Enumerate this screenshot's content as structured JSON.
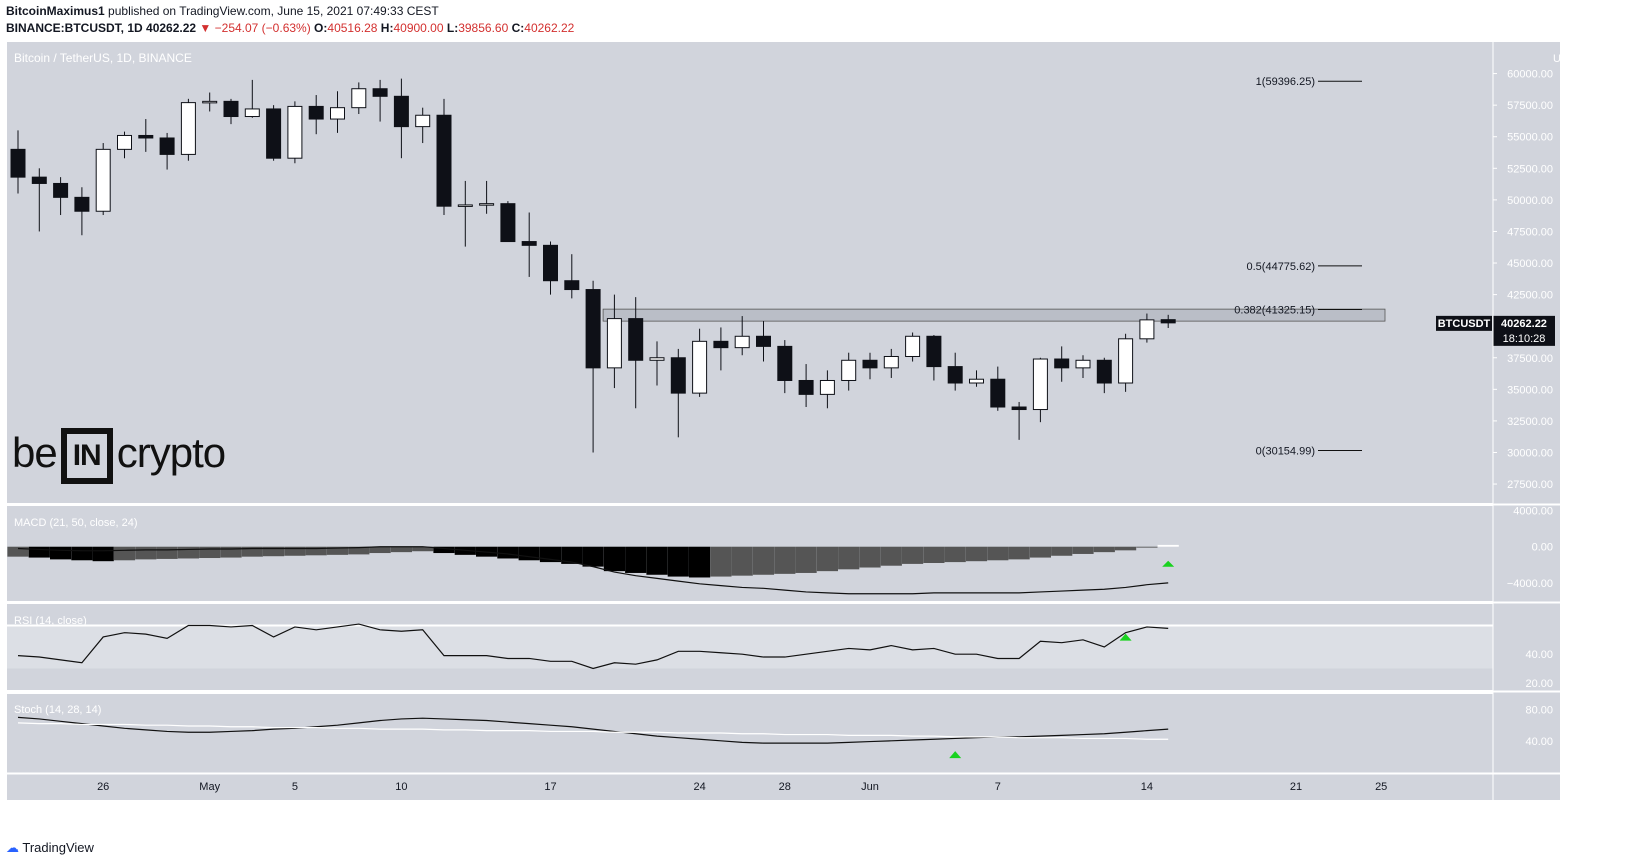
{
  "header": {
    "author": "BitcoinMaximus1",
    "published_text": "published on TradingView.com, June 15, 2021 07:49:33 CEST",
    "symbol": "BINANCE:BTCUSDT, 1D",
    "last": "40262.22",
    "change": "▼ −254.07 (−0.63%)",
    "open": "40516.28",
    "high": "40900.00",
    "low": "39856.60",
    "close": "40262.22"
  },
  "legend": "Bitcoin / TetherUS, 1D, BINANCE",
  "watermark": {
    "left": "be",
    "middle": "IN",
    "right": "crypto"
  },
  "price_axis": {
    "unit_label": "USDT",
    "ticks": [
      "60000.00",
      "57500.00",
      "55000.00",
      "52500.00",
      "50000.00",
      "47500.00",
      "45000.00",
      "42500.00",
      "37500.00",
      "35000.00",
      "32500.00",
      "30000.00",
      "27500.00"
    ],
    "symbol_tag": "BTCUSDT",
    "price_tag": "40262.22",
    "countdown": "18:10:28"
  },
  "fib_levels": [
    {
      "label": "1(59396.25)",
      "value": 59396.25
    },
    {
      "label": "0.5(44775.62)",
      "value": 44775.62
    },
    {
      "label": "0.382(41325.15)",
      "value": 41325.15
    },
    {
      "label": "0(30154.99)",
      "value": 30154.99
    }
  ],
  "resistance_zone": [
    40400,
    41350
  ],
  "x_axis_labels": [
    "26",
    "May",
    "5",
    "10",
    "17",
    "24",
    "28",
    "Jun",
    "7",
    "14",
    "21",
    "25"
  ],
  "panels": {
    "macd": {
      "title": "MACD (21, 50, close, 24)",
      "ticks": [
        "4000.00",
        "0.00",
        "−4000.00"
      ]
    },
    "rsi": {
      "title": "RSI (14, close)",
      "ticks": [
        "40.00",
        "20.00"
      ]
    },
    "stoch": {
      "title": "Stoch (14, 28, 14)",
      "ticks": [
        "80.00",
        "40.00"
      ]
    }
  },
  "footer": {
    "brand": "TradingView"
  },
  "colors": {
    "chart_bg": "#d1d4dc",
    "bear": "#0e1017",
    "bull": "#ffffff",
    "signal": "#19d21f"
  },
  "chart_data": [
    {
      "type": "candlestick",
      "title": "Bitcoin / TetherUS, 1D, BINANCE",
      "ylabel": "USDT",
      "ylim": [
        26000,
        62500
      ],
      "x": [
        "Apr 22",
        "Apr 23",
        "Apr 24",
        "Apr 25",
        "Apr 26",
        "Apr 27",
        "Apr 28",
        "Apr 29",
        "Apr 30",
        "May 1",
        "May 2",
        "May 3",
        "May 4",
        "May 5",
        "May 6",
        "May 7",
        "May 8",
        "May 9",
        "May 10",
        "May 11",
        "May 12",
        "May 13",
        "May 14",
        "May 15",
        "May 16",
        "May 17",
        "May 18",
        "May 19",
        "May 20",
        "May 21",
        "May 22",
        "May 23",
        "May 24",
        "May 25",
        "May 26",
        "May 27",
        "May 28",
        "May 29",
        "May 30",
        "May 31",
        "Jun 1",
        "Jun 2",
        "Jun 3",
        "Jun 4",
        "Jun 5",
        "Jun 6",
        "Jun 7",
        "Jun 8",
        "Jun 9",
        "Jun 10",
        "Jun 11",
        "Jun 12",
        "Jun 13",
        "Jun 14",
        "Jun 15"
      ],
      "ohlc": [
        [
          54000,
          55500,
          50500,
          51800
        ],
        [
          51800,
          52500,
          47500,
          51300
        ],
        [
          51300,
          51800,
          48800,
          50200
        ],
        [
          50200,
          51000,
          47200,
          49100
        ],
        [
          49100,
          54500,
          48800,
          54000
        ],
        [
          54000,
          55400,
          53300,
          55100
        ],
        [
          55100,
          56400,
          53800,
          54900
        ],
        [
          54900,
          55300,
          52400,
          53600
        ],
        [
          53600,
          58000,
          53100,
          57700
        ],
        [
          57700,
          58500,
          57000,
          57800
        ],
        [
          57800,
          58000,
          56000,
          56600
        ],
        [
          56600,
          59500,
          56500,
          57200
        ],
        [
          57200,
          57500,
          53100,
          53300
        ],
        [
          53300,
          57800,
          52900,
          57400
        ],
        [
          57400,
          58300,
          55200,
          56400
        ],
        [
          56400,
          58600,
          55300,
          57300
        ],
        [
          57300,
          59300,
          56800,
          58800
        ],
        [
          58800,
          59500,
          56200,
          58200
        ],
        [
          58200,
          59600,
          53300,
          55800
        ],
        [
          55800,
          57300,
          54500,
          56700
        ],
        [
          56700,
          58000,
          48800,
          49500
        ],
        [
          49500,
          51500,
          46300,
          49600
        ],
        [
          49600,
          51500,
          48900,
          49700
        ],
        [
          49700,
          49900,
          47000,
          46700
        ],
        [
          46700,
          49000,
          43900,
          46400
        ],
        [
          46400,
          46700,
          42500,
          43600
        ],
        [
          43600,
          45700,
          42200,
          42900
        ],
        [
          42900,
          43600,
          30000,
          36700
        ],
        [
          36700,
          42500,
          35100,
          40600
        ],
        [
          40600,
          42300,
          33500,
          37300
        ],
        [
          37300,
          38800,
          35300,
          37500
        ],
        [
          37500,
          38200,
          31200,
          34700
        ],
        [
          34700,
          39800,
          34400,
          38800
        ],
        [
          38800,
          39900,
          36500,
          38300
        ],
        [
          38300,
          40800,
          37700,
          39200
        ],
        [
          39200,
          40400,
          37200,
          38400
        ],
        [
          38400,
          38900,
          34700,
          35700
        ],
        [
          35700,
          37000,
          33600,
          34600
        ],
        [
          34600,
          36500,
          33500,
          35700
        ],
        [
          35700,
          37900,
          34900,
          37300
        ],
        [
          37300,
          37900,
          35800,
          36700
        ],
        [
          36700,
          38200,
          35900,
          37600
        ],
        [
          37600,
          39500,
          37200,
          39200
        ],
        [
          39200,
          39300,
          35700,
          36800
        ],
        [
          36800,
          37900,
          34900,
          35500
        ],
        [
          35500,
          36500,
          35200,
          35800
        ],
        [
          35800,
          36800,
          33300,
          33600
        ],
        [
          33600,
          34000,
          31000,
          33400
        ],
        [
          33400,
          37500,
          32400,
          37400
        ],
        [
          37400,
          38400,
          35600,
          36700
        ],
        [
          36700,
          37700,
          35900,
          37300
        ],
        [
          37300,
          37500,
          34700,
          35500
        ],
        [
          35500,
          39400,
          34800,
          39000
        ],
        [
          39000,
          41000,
          38700,
          40500
        ],
        [
          40516.28,
          40900,
          39856.6,
          40262.22
        ]
      ]
    },
    {
      "type": "bar",
      "title": "MACD (21, 50, close, 24)",
      "ylim": [
        -6000,
        4500
      ],
      "histogram": [
        -1100,
        -1200,
        -1400,
        -1500,
        -1600,
        -1500,
        -1400,
        -1350,
        -1300,
        -1250,
        -1200,
        -1100,
        -1050,
        -1000,
        -950,
        -900,
        -850,
        -700,
        -600,
        -500,
        -700,
        -900,
        -1100,
        -1300,
        -1500,
        -1700,
        -1900,
        -2200,
        -2700,
        -2900,
        -3100,
        -3300,
        -3400,
        -3300,
        -3200,
        -3100,
        -3000,
        -2900,
        -2700,
        -2500,
        -2300,
        -2100,
        -1900,
        -1800,
        -1700,
        -1600,
        -1500,
        -1400,
        -1200,
        -1000,
        -800,
        -600,
        -400,
        -100,
        200
      ],
      "macd_line": [
        -200,
        -300,
        -400,
        -450,
        -450,
        -400,
        -350,
        -350,
        -300,
        -250,
        -250,
        -200,
        -200,
        -200,
        -200,
        -150,
        -100,
        0,
        0,
        0,
        -200,
        -400,
        -600,
        -800,
        -1100,
        -1400,
        -1700,
        -2200,
        -2800,
        -3200,
        -3500,
        -3800,
        -4100,
        -4300,
        -4500,
        -4600,
        -4800,
        -5000,
        -5100,
        -5200,
        -5200,
        -5200,
        -5200,
        -5100,
        -5100,
        -5100,
        -5100,
        -5100,
        -5000,
        -4900,
        -4800,
        -4700,
        -4500,
        -4200,
        -4000
      ]
    },
    {
      "type": "line",
      "title": "RSI (14, close)",
      "ylim": [
        15,
        75
      ],
      "values": [
        39,
        38,
        36,
        34,
        52,
        55,
        54,
        51,
        60,
        60,
        59,
        60,
        52,
        59,
        57,
        59,
        61,
        57,
        56,
        57,
        39,
        39,
        39,
        37,
        37,
        35,
        35,
        30,
        34,
        33,
        36,
        42,
        42,
        41,
        40,
        38,
        38,
        40,
        42,
        44,
        43,
        46,
        43,
        44,
        40,
        40,
        37,
        37,
        49,
        48,
        50,
        45,
        55,
        59,
        58
      ],
      "overbought_line": 60,
      "signals": [
        {
          "x": "Jun 13",
          "type": "up"
        }
      ]
    },
    {
      "type": "line",
      "title": "Stoch (14, 28, 14)",
      "ylim": [
        0,
        100
      ],
      "series": [
        {
          "values": [
            70,
            68,
            65,
            62,
            59,
            56,
            54,
            52,
            51,
            51,
            52,
            53,
            55,
            56,
            58,
            60,
            63,
            66,
            68,
            69,
            68,
            67,
            66,
            64,
            62,
            60,
            58,
            55,
            52,
            49,
            46,
            44,
            42,
            40,
            38,
            37,
            37,
            37,
            37,
            38,
            39,
            40,
            41,
            42,
            43,
            44,
            45,
            45,
            46,
            47,
            48,
            49,
            51,
            53,
            55
          ]
        },
        {
          "values": [
            63,
            62,
            62,
            61,
            61,
            61,
            60,
            60,
            59,
            59,
            58,
            58,
            57,
            57,
            57,
            56,
            56,
            55,
            55,
            55,
            54,
            54,
            53,
            53,
            53,
            52,
            52,
            52,
            51,
            51,
            51,
            50,
            50,
            50,
            49,
            49,
            48,
            48,
            48,
            47,
            47,
            47,
            46,
            46,
            45,
            45,
            45,
            44,
            44,
            44,
            43,
            43,
            43,
            42,
            42
          ]
        }
      ],
      "signals": [
        {
          "x": "Jun 5",
          "type": "up"
        }
      ]
    }
  ]
}
